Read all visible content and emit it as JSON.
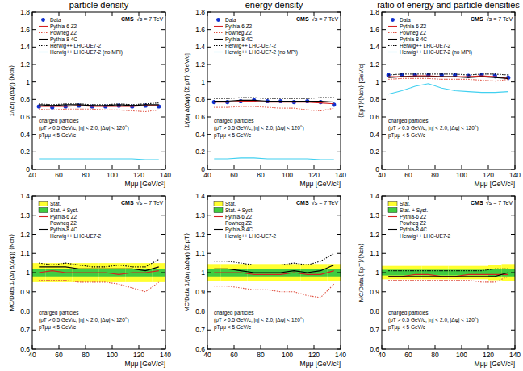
{
  "chart_data": [
    {
      "type": "line",
      "title": "particle density",
      "x_label": "Mμμ [GeV/c²]",
      "y_label": "1/(Δη Δ(Δφ)) ⟨Nch⟩",
      "xlim": [
        40,
        140
      ],
      "xticks": [
        40,
        60,
        80,
        100,
        120,
        140
      ],
      "ylim": [
        0,
        1.8
      ],
      "yticks": [
        0,
        0.2,
        0.4,
        0.6,
        0.8,
        1,
        1.2,
        1.4,
        1.6,
        1.8
      ],
      "x": [
        45,
        55,
        65,
        75,
        85,
        95,
        105,
        115,
        125,
        135
      ],
      "series": [
        {
          "name": "Data",
          "type": "scatter",
          "marker": "circle",
          "color": "#1030d0",
          "values": [
            0.72,
            0.71,
            0.72,
            0.73,
            0.72,
            0.72,
            0.73,
            0.72,
            0.73,
            0.72
          ],
          "errors": [
            0.01,
            0.01,
            0.01,
            0.01,
            0.01,
            0.01,
            0.01,
            0.01,
            0.01,
            0.01
          ]
        },
        {
          "name": "Pythia-6 Z2",
          "color": "#d62020",
          "line_style": "solid",
          "values": [
            0.72,
            0.72,
            0.72,
            0.73,
            0.72,
            0.72,
            0.72,
            0.72,
            0.73,
            0.73
          ]
        },
        {
          "name": "Powheg Z2",
          "color": "#e05040",
          "line_style": "dotted",
          "values": [
            0.69,
            0.68,
            0.69,
            0.69,
            0.69,
            0.68,
            0.68,
            0.67,
            0.66,
            0.68
          ]
        },
        {
          "name": "Pythia-8 4C",
          "color": "#000000",
          "line_style": "solid",
          "values": [
            0.74,
            0.73,
            0.74,
            0.74,
            0.73,
            0.73,
            0.74,
            0.73,
            0.74,
            0.74
          ]
        },
        {
          "name": "Herwig++ LHC-UE7-2",
          "color": "#000000",
          "line_style": "dotted",
          "values": [
            0.75,
            0.74,
            0.75,
            0.75,
            0.74,
            0.74,
            0.75,
            0.74,
            0.75,
            0.76
          ]
        },
        {
          "name": "Herwig++ LHC-UE7-2 (no MPI)",
          "color": "#40d0f0",
          "line_style": "solid",
          "values": [
            0.12,
            0.12,
            0.12,
            0.12,
            0.12,
            0.12,
            0.12,
            0.12,
            0.11,
            0.11
          ]
        }
      ],
      "annotations": [
        "CMS",
        "√s = 7 TeV",
        "charged particles",
        "(pT > 0.5 GeV/c, |η| < 2.0, |Δφ| < 120°)",
        "pTμμ < 5 GeV/c"
      ],
      "legend": "upper left"
    },
    {
      "type": "line",
      "title": "energy density",
      "x_label": "Mμμ [GeV/c²]",
      "y_label": "1/(Δη Δ(Δφ)) ⟨Σ pT⟩ [GeV/c]",
      "xlim": [
        40,
        140
      ],
      "xticks": [
        40,
        60,
        80,
        100,
        120,
        140
      ],
      "ylim": [
        0,
        1.8
      ],
      "yticks": [
        0,
        0.2,
        0.4,
        0.6,
        0.8,
        1,
        1.2,
        1.4,
        1.6,
        1.8
      ],
      "x": [
        45,
        55,
        65,
        75,
        85,
        95,
        105,
        115,
        125,
        135
      ],
      "series": [
        {
          "name": "Data",
          "type": "scatter",
          "marker": "circle",
          "color": "#1030d0",
          "values": [
            0.77,
            0.77,
            0.78,
            0.79,
            0.78,
            0.78,
            0.77,
            0.78,
            0.77,
            0.74
          ],
          "errors": [
            0.01,
            0.01,
            0.01,
            0.01,
            0.01,
            0.01,
            0.01,
            0.01,
            0.01,
            0.01
          ]
        },
        {
          "name": "Pythia-6 Z2",
          "color": "#d62020",
          "line_style": "solid",
          "values": [
            0.77,
            0.77,
            0.78,
            0.78,
            0.77,
            0.77,
            0.77,
            0.77,
            0.76,
            0.75
          ]
        },
        {
          "name": "Powheg Z2",
          "color": "#e05040",
          "line_style": "dotted",
          "values": [
            0.71,
            0.71,
            0.72,
            0.72,
            0.71,
            0.7,
            0.7,
            0.68,
            0.67,
            0.7
          ]
        },
        {
          "name": "Pythia-8 4C",
          "color": "#000000",
          "line_style": "solid",
          "values": [
            0.78,
            0.78,
            0.79,
            0.79,
            0.78,
            0.78,
            0.78,
            0.78,
            0.78,
            0.77
          ]
        },
        {
          "name": "Herwig++ LHC-UE7-2",
          "color": "#000000",
          "line_style": "dotted",
          "values": [
            0.81,
            0.81,
            0.82,
            0.82,
            0.81,
            0.81,
            0.81,
            0.81,
            0.82,
            0.82
          ]
        },
        {
          "name": "Herwig++ LHC-UE7-2 (no MPI)",
          "color": "#40d0f0",
          "line_style": "solid",
          "values": [
            0.12,
            0.12,
            0.13,
            0.13,
            0.12,
            0.12,
            0.12,
            0.12,
            0.11,
            0.11
          ]
        }
      ],
      "annotations": [
        "CMS",
        "√s = 7 TeV",
        "charged particles",
        "(pT > 0.5 GeV/c, |η| < 2.0, |Δφ| < 120°)",
        "pTμμ < 5 GeV/c"
      ],
      "legend": "upper left"
    },
    {
      "type": "line",
      "title": "ratio of energy and particle densities",
      "x_label": "Mμμ [GeV/c²]",
      "y_label": "⟨ΣpT⟩/⟨Nch⟩ [GeV/c]",
      "xlim": [
        40,
        140
      ],
      "xticks": [
        40,
        60,
        80,
        100,
        120,
        140
      ],
      "ylim": [
        0,
        1.8
      ],
      "yticks": [
        0,
        0.2,
        0.4,
        0.6,
        0.8,
        1,
        1.2,
        1.4,
        1.6,
        1.8
      ],
      "x": [
        45,
        55,
        65,
        75,
        85,
        95,
        105,
        115,
        125,
        135
      ],
      "series": [
        {
          "name": "Data",
          "type": "scatter",
          "marker": "circle",
          "color": "#1030d0",
          "values": [
            1.08,
            1.08,
            1.08,
            1.08,
            1.08,
            1.08,
            1.07,
            1.08,
            1.07,
            1.05
          ],
          "errors": [
            0.02,
            0.02,
            0.02,
            0.02,
            0.02,
            0.02,
            0.02,
            0.02,
            0.03,
            0.04
          ]
        },
        {
          "name": "Pythia-6 Z2",
          "color": "#d62020",
          "line_style": "solid",
          "values": [
            1.06,
            1.06,
            1.07,
            1.07,
            1.06,
            1.06,
            1.06,
            1.07,
            1.06,
            1.04
          ]
        },
        {
          "name": "Powheg Z2",
          "color": "#e05040",
          "line_style": "dotted",
          "values": [
            1.03,
            1.04,
            1.04,
            1.04,
            1.03,
            1.03,
            1.03,
            1.02,
            1.01,
            1.03
          ]
        },
        {
          "name": "Pythia-8 4C",
          "color": "#000000",
          "line_style": "solid",
          "values": [
            1.05,
            1.06,
            1.06,
            1.06,
            1.06,
            1.06,
            1.05,
            1.06,
            1.05,
            1.04
          ]
        },
        {
          "name": "Herwig++ LHC-UE7-2",
          "color": "#000000",
          "line_style": "dotted",
          "values": [
            1.08,
            1.09,
            1.09,
            1.09,
            1.09,
            1.09,
            1.08,
            1.09,
            1.09,
            1.08
          ]
        },
        {
          "name": "Herwig++ LHC-UE7-2 (no MPI)",
          "color": "#40d0f0",
          "line_style": "solid",
          "values": [
            0.86,
            0.9,
            0.95,
            0.98,
            0.93,
            0.9,
            0.89,
            0.88,
            0.88,
            0.89
          ]
        }
      ],
      "annotations": [
        "CMS",
        "√s = 7 TeV",
        "charged particles",
        "(pT > 0.5 GeV/c, |η| < 2.0, |Δφ| < 120°)",
        "pTμμ < 5 GeV/c"
      ],
      "legend": "upper left"
    },
    {
      "type": "line",
      "x_label": "Mμμ [GeV/c²]",
      "y_label": "MC/Data 1/(Δη Δ(Δφ)) ⟨Nch⟩",
      "xlim": [
        40,
        140
      ],
      "xticks": [
        40,
        60,
        80,
        100,
        120,
        140
      ],
      "ylim": [
        0.6,
        1.4
      ],
      "yticks": [
        0.6,
        0.7,
        0.8,
        0.9,
        1,
        1.1,
        1.2,
        1.3,
        1.4
      ],
      "x": [
        45,
        55,
        65,
        75,
        85,
        95,
        105,
        115,
        125,
        135
      ],
      "bands": [
        {
          "name": "Stat.",
          "color": "#ffff30",
          "center": 1,
          "errors": [
            0.05,
            0.05,
            0.05,
            0.05,
            0.05,
            0.05,
            0.05,
            0.05,
            0.05,
            0.05
          ]
        },
        {
          "name": "Stat. + Syst.",
          "color": "#40cc40",
          "center": 1,
          "errors": [
            0.02,
            0.02,
            0.02,
            0.02,
            0.02,
            0.02,
            0.02,
            0.02,
            0.02,
            0.02
          ]
        }
      ],
      "series": [
        {
          "name": "Pythia-6 Z2",
          "color": "#d62020",
          "line_style": "solid",
          "values": [
            1,
            1.01,
            1,
            1,
            1,
            1,
            0.99,
            1,
            1,
            1.01
          ]
        },
        {
          "name": "Powheg Z2",
          "color": "#e05040",
          "line_style": "dotted",
          "values": [
            0.96,
            0.96,
            0.96,
            0.95,
            0.95,
            0.95,
            0.94,
            0.92,
            0.9,
            0.95
          ]
        },
        {
          "name": "Pythia-8 4C",
          "color": "#000000",
          "line_style": "solid",
          "values": [
            1.03,
            1.03,
            1.03,
            1.02,
            1.02,
            1.02,
            1.02,
            1.02,
            1.01,
            1.03
          ]
        },
        {
          "name": "Herwig++ LHC-UE7-2",
          "color": "#000000",
          "line_style": "dotted",
          "values": [
            1.05,
            1.04,
            1.05,
            1.04,
            1.03,
            1.03,
            1.04,
            1.03,
            1.03,
            1.07
          ]
        }
      ],
      "annotations": [
        "CMS",
        "√s = 7 TeV",
        "charged particles",
        "(pT > 0.5 GeV/c, |η| < 2.0, |Δφ| < 120°)",
        "pTμμ < 5 GeV/c"
      ],
      "legend": "upper left"
    },
    {
      "type": "line",
      "x_label": "Mμμ [GeV/c²]",
      "y_label": "MC/Data 1/(Δη Δ(Δφ)) ⟨Σ pT⟩",
      "xlim": [
        40,
        140
      ],
      "xticks": [
        40,
        60,
        80,
        100,
        120,
        140
      ],
      "ylim": [
        0.6,
        1.4
      ],
      "yticks": [
        0.6,
        0.7,
        0.8,
        0.9,
        1,
        1.1,
        1.2,
        1.3,
        1.4
      ],
      "x": [
        45,
        55,
        65,
        75,
        85,
        95,
        105,
        115,
        125,
        135
      ],
      "bands": [
        {
          "name": "Stat.",
          "color": "#ffff30",
          "center": 1,
          "errors": [
            0.045,
            0.045,
            0.045,
            0.045,
            0.045,
            0.045,
            0.045,
            0.045,
            0.045,
            0.045
          ]
        },
        {
          "name": "Stat. + Syst.",
          "color": "#40cc40",
          "center": 1,
          "errors": [
            0.02,
            0.02,
            0.02,
            0.02,
            0.02,
            0.02,
            0.02,
            0.02,
            0.02,
            0.02
          ]
        }
      ],
      "series": [
        {
          "name": "Pythia-6 Z2",
          "color": "#d62020",
          "line_style": "solid",
          "values": [
            1,
            1,
            1,
            0.99,
            0.99,
            0.99,
            1,
            0.99,
            0.99,
            1.01
          ]
        },
        {
          "name": "Powheg Z2",
          "color": "#e05040",
          "line_style": "dotted",
          "values": [
            0.93,
            0.93,
            0.92,
            0.91,
            0.91,
            0.9,
            0.9,
            0.88,
            0.87,
            0.94
          ]
        },
        {
          "name": "Pythia-8 4C",
          "color": "#000000",
          "line_style": "solid",
          "values": [
            1.02,
            1.02,
            1.01,
            1,
            1,
            1,
            1.01,
            1,
            1.01,
            1.04
          ]
        },
        {
          "name": "Herwig++ LHC-UE7-2",
          "color": "#000000",
          "line_style": "dotted",
          "values": [
            1.06,
            1.06,
            1.05,
            1.04,
            1.04,
            1.04,
            1.05,
            1.04,
            1.06,
            1.1
          ]
        }
      ],
      "annotations": [
        "CMS",
        "√s = 7 TeV",
        "charged particles",
        "(pT > 0.5 GeV/c, |η| < 2.0, |Δφ| < 120°)",
        "pTμμ < 5 GeV/c"
      ],
      "legend": "upper left"
    },
    {
      "type": "line",
      "x_label": "Mμμ [GeV/c²]",
      "y_label": "MC/Data ⟨ΣpT⟩/⟨Nch⟩",
      "xlim": [
        40,
        140
      ],
      "xticks": [
        40,
        60,
        80,
        100,
        120,
        140
      ],
      "ylim": [
        0.6,
        1.4
      ],
      "yticks": [
        0.6,
        0.7,
        0.8,
        0.9,
        1,
        1.1,
        1.2,
        1.3,
        1.4
      ],
      "x": [
        45,
        55,
        65,
        75,
        85,
        95,
        105,
        115,
        125,
        135
      ],
      "bands": [
        {
          "name": "Stat.",
          "color": "#ffff30",
          "center": 1,
          "errors": [
            0.035,
            0.035,
            0.035,
            0.035,
            0.035,
            0.035,
            0.035,
            0.035,
            0.04,
            0.045
          ]
        },
        {
          "name": "Stat. + Syst.",
          "color": "#40cc40",
          "center": 1,
          "errors": [
            0.015,
            0.015,
            0.015,
            0.015,
            0.015,
            0.015,
            0.015,
            0.015,
            0.02,
            0.02
          ]
        }
      ],
      "series": [
        {
          "name": "Pythia-6 Z2",
          "color": "#d62020",
          "line_style": "solid",
          "values": [
            0.98,
            0.98,
            0.99,
            0.99,
            0.98,
            0.98,
            0.99,
            0.99,
            0.99,
            0.99
          ]
        },
        {
          "name": "Powheg Z2",
          "color": "#e05040",
          "line_style": "dotted",
          "values": [
            0.96,
            0.96,
            0.96,
            0.96,
            0.96,
            0.96,
            0.96,
            0.95,
            0.95,
            0.98
          ]
        },
        {
          "name": "Pythia-8 4C",
          "color": "#000000",
          "line_style": "solid",
          "values": [
            0.98,
            0.98,
            0.98,
            0.98,
            0.98,
            0.98,
            0.98,
            0.98,
            0.98,
            1
          ]
        },
        {
          "name": "Herwig++ LHC-UE7-2",
          "color": "#000000",
          "line_style": "dotted",
          "values": [
            1.01,
            1.01,
            1.01,
            1.01,
            1.01,
            1.01,
            1.01,
            1.01,
            1.02,
            1.02
          ]
        }
      ],
      "annotations": [
        "CMS",
        "√s = 7 TeV",
        "charged particles",
        "(pT > 0.5 GeV/c, |η| < 2.0, |Δφ| < 120°)",
        "pTμμ < 5 GeV/c"
      ],
      "legend": "upper left"
    }
  ]
}
